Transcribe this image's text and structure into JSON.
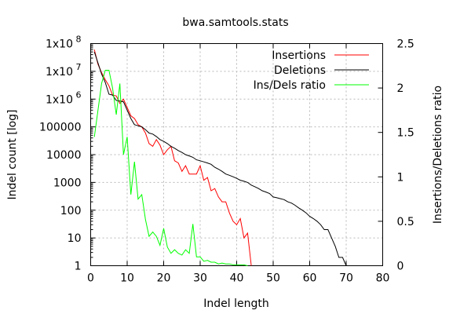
{
  "chart_data": {
    "type": "line",
    "title": "bwa.samtools.stats",
    "xlabel": "Indel length",
    "ylabel": "Indel count [log]",
    "y2label": "Insertions/Deletions ratio",
    "xlim": [
      0,
      80
    ],
    "ylim": [
      1,
      100000000
    ],
    "y2lim": [
      0,
      2.5
    ],
    "yscale": "log",
    "grid": true,
    "legend_position": "top-right",
    "x_ticks": [
      0,
      10,
      20,
      30,
      40,
      50,
      60,
      70,
      80
    ],
    "y_ticks": [
      {
        "value": 1,
        "label": "1"
      },
      {
        "value": 10,
        "label": "10"
      },
      {
        "value": 100,
        "label": "100"
      },
      {
        "value": 1000,
        "label": "1000"
      },
      {
        "value": 10000,
        "label": "10000"
      },
      {
        "value": 100000,
        "label": "100000"
      },
      {
        "value": 1000000,
        "label": "1x10",
        "exp": "6"
      },
      {
        "value": 10000000,
        "label": "1x10",
        "exp": "7"
      },
      {
        "value": 100000000,
        "label": "1x10",
        "exp": "8"
      }
    ],
    "y2_ticks": [
      0,
      0.5,
      1,
      1.5,
      2,
      2.5
    ],
    "series": [
      {
        "name": "Insertions",
        "color": "#ff0000",
        "axis": "left",
        "x": [
          1,
          2,
          3,
          4,
          5,
          6,
          7,
          8,
          9,
          10,
          11,
          12,
          13,
          14,
          15,
          16,
          17,
          18,
          19,
          20,
          21,
          22,
          23,
          24,
          25,
          26,
          27,
          28,
          29,
          30,
          31,
          32,
          33,
          34,
          35,
          36,
          37,
          38,
          39,
          40,
          41,
          42,
          43,
          44
        ],
        "values": [
          60000000,
          18000000,
          9000000,
          5000000,
          3000000,
          1400000,
          1300000,
          700000,
          1000000,
          500000,
          250000,
          200000,
          120000,
          100000,
          60000,
          25000,
          20000,
          35000,
          22000,
          10000,
          15000,
          20000,
          6000,
          5000,
          2500,
          4000,
          2000,
          2000,
          2000,
          4000,
          1200,
          1500,
          500,
          600,
          300,
          200,
          200,
          80,
          40,
          30,
          50,
          10,
          15,
          1
        ]
      },
      {
        "name": "Deletions",
        "color": "#000000",
        "axis": "left",
        "x": [
          1,
          2,
          3,
          4,
          5,
          6,
          7,
          8,
          9,
          10,
          11,
          12,
          13,
          14,
          15,
          16,
          17,
          18,
          19,
          20,
          21,
          22,
          23,
          24,
          25,
          26,
          27,
          28,
          29,
          30,
          31,
          32,
          33,
          34,
          35,
          36,
          37,
          38,
          39,
          40,
          41,
          42,
          43,
          44,
          45,
          46,
          47,
          48,
          49,
          50,
          51,
          52,
          53,
          54,
          55,
          56,
          57,
          58,
          59,
          60,
          61,
          62,
          63,
          64,
          65,
          66,
          67,
          68,
          69,
          70,
          71
        ],
        "values": [
          50000000,
          20000000,
          8000000,
          4000000,
          1500000,
          1400000,
          900000,
          850000,
          800000,
          400000,
          200000,
          120000,
          110000,
          100000,
          80000,
          60000,
          55000,
          45000,
          35000,
          30000,
          25000,
          20000,
          17000,
          14000,
          12000,
          10000,
          9000,
          8000,
          6500,
          6000,
          5500,
          5000,
          4500,
          3500,
          3000,
          2500,
          2000,
          1800,
          1600,
          1400,
          1200,
          1100,
          1000,
          800,
          700,
          600,
          500,
          450,
          400,
          300,
          280,
          260,
          240,
          200,
          180,
          150,
          120,
          100,
          80,
          60,
          50,
          40,
          30,
          20,
          20,
          10,
          5,
          2,
          2,
          1,
          1
        ]
      },
      {
        "name": "Ins/Dels ratio",
        "color": "#00ff00",
        "axis": "right",
        "x": [
          1,
          2,
          3,
          4,
          5,
          6,
          7,
          8,
          9,
          10,
          11,
          12,
          13,
          14,
          15,
          16,
          17,
          18,
          19,
          20,
          21,
          22,
          23,
          24,
          25,
          26,
          27,
          28,
          29,
          30,
          31,
          32,
          33,
          34,
          35,
          36,
          37,
          38,
          39,
          40,
          41,
          42,
          43
        ],
        "values": [
          1.45,
          1.75,
          2.05,
          2.2,
          2.2,
          2.0,
          1.7,
          2.05,
          1.25,
          1.45,
          0.8,
          1.17,
          0.75,
          0.8,
          0.52,
          0.33,
          0.38,
          0.33,
          0.23,
          0.42,
          0.21,
          0.14,
          0.18,
          0.14,
          0.12,
          0.18,
          0.14,
          0.47,
          0.1,
          0.1,
          0.05,
          0.06,
          0.04,
          0.04,
          0.02,
          0.03,
          0.02,
          0.02,
          0.01,
          0.01,
          0.01,
          0.01,
          0.0
        ]
      }
    ]
  }
}
